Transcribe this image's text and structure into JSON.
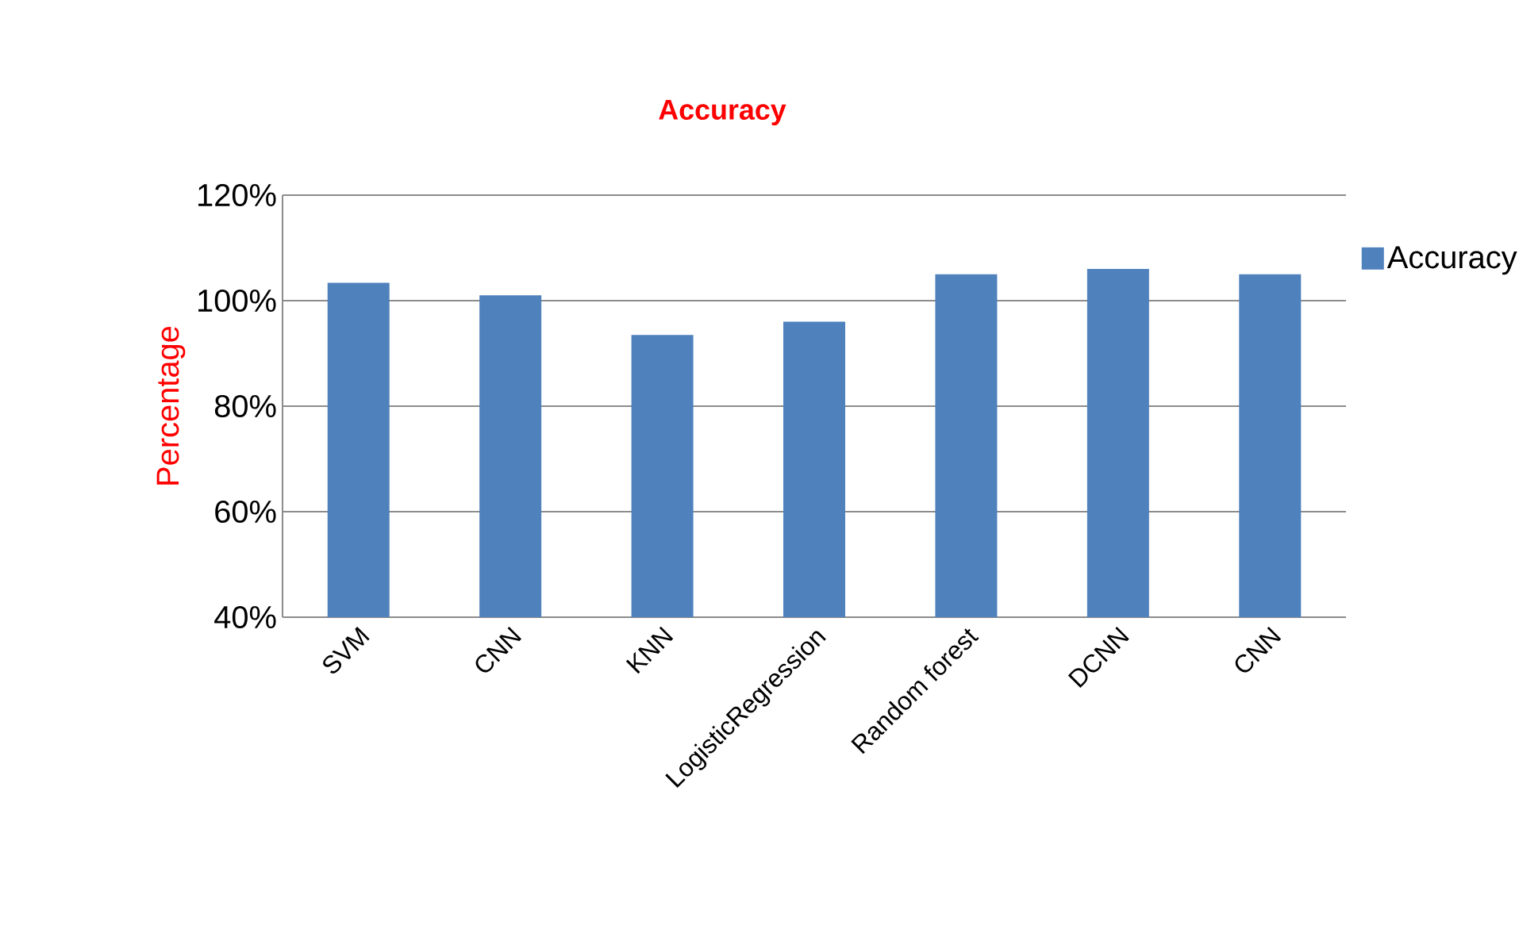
{
  "chart_data": {
    "type": "bar",
    "title": "Accuracy",
    "ylabel": "Percentage",
    "categories": [
      "SVM",
      "CNN",
      "KNN",
      "LogisticRegression",
      "Random forest",
      "DCNN",
      "CNN"
    ],
    "series": [
      {
        "name": "Accuracy",
        "color": "#4f81bd",
        "values": [
          103.4,
          101,
          93.5,
          96,
          105,
          106,
          105
        ]
      }
    ],
    "ylim": [
      40,
      120
    ],
    "yticks": [
      {
        "value": 40,
        "label": "40%"
      },
      {
        "value": 60,
        "label": "60%"
      },
      {
        "value": 80,
        "label": "80%"
      },
      {
        "value": 100,
        "label": "100%"
      },
      {
        "value": 120,
        "label": "120%"
      }
    ],
    "grid": "y",
    "legend": "right"
  }
}
